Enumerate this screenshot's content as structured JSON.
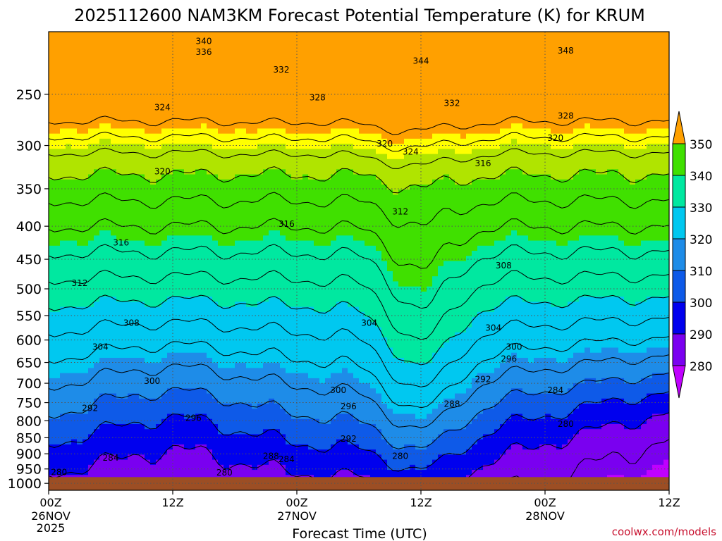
{
  "title": "2025112600 NAM3KM Forecast Potential Temperature (K) for KRUM",
  "credit": "coolwx.com/models",
  "colors": {
    "ground": "#9c4e24",
    "fill_bands": [
      "#ff00ff",
      "#c000ff",
      "#7a00f0",
      "#0000ee",
      "#0e5ae8",
      "#1e8ce8",
      "#00c8f0",
      "#00e8a0",
      "#40e000",
      "#b0e400",
      "#ffff00",
      "#ffa000"
    ]
  },
  "chart_data": {
    "type": "heatmap",
    "title": "2025112600 NAM3KM Forecast Potential Temperature (K) for KRUM",
    "xlabel": "Forecast Time (UTC)",
    "ylabel": "",
    "x_ticks": [
      {
        "hours": 0,
        "label": "00Z",
        "sublabel": "26NOV",
        "sublabel2": "2025"
      },
      {
        "hours": 12,
        "label": "12Z",
        "sublabel": "",
        "sublabel2": ""
      },
      {
        "hours": 24,
        "label": "00Z",
        "sublabel": "27NOV",
        "sublabel2": ""
      },
      {
        "hours": 36,
        "label": "12Z",
        "sublabel": "",
        "sublabel2": ""
      },
      {
        "hours": 48,
        "label": "00Z",
        "sublabel": "28NOV",
        "sublabel2": ""
      },
      {
        "hours": 60,
        "label": "12Z",
        "sublabel": "",
        "sublabel2": ""
      }
    ],
    "xlim_hours": [
      0,
      60
    ],
    "y_ticks": [
      250,
      300,
      350,
      400,
      450,
      500,
      550,
      600,
      650,
      700,
      750,
      800,
      850,
      900,
      950,
      1000
    ],
    "ylim_hpa": [
      200,
      1025
    ],
    "y_scale": "log",
    "grid": true,
    "surface_pressure_hpa": 978,
    "colorbar": {
      "placement": "right",
      "levels": [
        280,
        290,
        300,
        310,
        320,
        330,
        340,
        350
      ],
      "labels": [
        "280",
        "290",
        "300",
        "310",
        "320",
        "330",
        "340",
        "350"
      ],
      "colors": [
        "#c000ff",
        "#7a00f0",
        "#0000ee",
        "#0e5ae8",
        "#1e8ce8",
        "#00c8f0",
        "#00e8a0",
        "#40e000",
        "#b0e400",
        "#ffff00",
        "#ffa000"
      ]
    },
    "contour_interval_k": 4,
    "contour_labels": [
      {
        "text": "340",
        "hours": 15.0,
        "hpa": 207
      },
      {
        "text": "336",
        "hours": 15.0,
        "hpa": 215
      },
      {
        "text": "332",
        "hours": 22.5,
        "hpa": 229
      },
      {
        "text": "328",
        "hours": 26.0,
        "hpa": 253
      },
      {
        "text": "344",
        "hours": 36.0,
        "hpa": 222
      },
      {
        "text": "348",
        "hours": 50.0,
        "hpa": 214
      },
      {
        "text": "332",
        "hours": 39.0,
        "hpa": 258
      },
      {
        "text": "328",
        "hours": 50.0,
        "hpa": 270
      },
      {
        "text": "324",
        "hours": 11.0,
        "hpa": 262
      },
      {
        "text": "320",
        "hours": 49.0,
        "hpa": 292
      },
      {
        "text": "320",
        "hours": 32.5,
        "hpa": 298
      },
      {
        "text": "324",
        "hours": 35.0,
        "hpa": 307
      },
      {
        "text": "316",
        "hours": 42.0,
        "hpa": 320
      },
      {
        "text": "320",
        "hours": 11.0,
        "hpa": 329
      },
      {
        "text": "312",
        "hours": 34.0,
        "hpa": 380
      },
      {
        "text": "316",
        "hours": 23.0,
        "hpa": 397
      },
      {
        "text": "316",
        "hours": 7.0,
        "hpa": 424
      },
      {
        "text": "308",
        "hours": 44.0,
        "hpa": 460
      },
      {
        "text": "312",
        "hours": 3.0,
        "hpa": 490
      },
      {
        "text": "308",
        "hours": 8.0,
        "hpa": 565
      },
      {
        "text": "304",
        "hours": 31.0,
        "hpa": 565
      },
      {
        "text": "304",
        "hours": 43.0,
        "hpa": 575
      },
      {
        "text": "304",
        "hours": 5.0,
        "hpa": 615
      },
      {
        "text": "300",
        "hours": 45.0,
        "hpa": 615
      },
      {
        "text": "296",
        "hours": 44.5,
        "hpa": 642
      },
      {
        "text": "300",
        "hours": 10.0,
        "hpa": 695
      },
      {
        "text": "292",
        "hours": 42.0,
        "hpa": 690
      },
      {
        "text": "300",
        "hours": 28.0,
        "hpa": 718
      },
      {
        "text": "284",
        "hours": 49.0,
        "hpa": 718
      },
      {
        "text": "296",
        "hours": 29.0,
        "hpa": 760
      },
      {
        "text": "288",
        "hours": 39.0,
        "hpa": 754
      },
      {
        "text": "292",
        "hours": 4.0,
        "hpa": 765
      },
      {
        "text": "296",
        "hours": 14.0,
        "hpa": 792
      },
      {
        "text": "280",
        "hours": 50.0,
        "hpa": 810
      },
      {
        "text": "292",
        "hours": 29.0,
        "hpa": 853
      },
      {
        "text": "288",
        "hours": 21.5,
        "hpa": 907
      },
      {
        "text": "284",
        "hours": 23.0,
        "hpa": 918
      },
      {
        "text": "284",
        "hours": 6.0,
        "hpa": 913
      },
      {
        "text": "280",
        "hours": 34.0,
        "hpa": 908
      },
      {
        "text": "280",
        "hours": 1.0,
        "hpa": 962
      },
      {
        "text": "280",
        "hours": 17.0,
        "hpa": 963
      }
    ]
  }
}
